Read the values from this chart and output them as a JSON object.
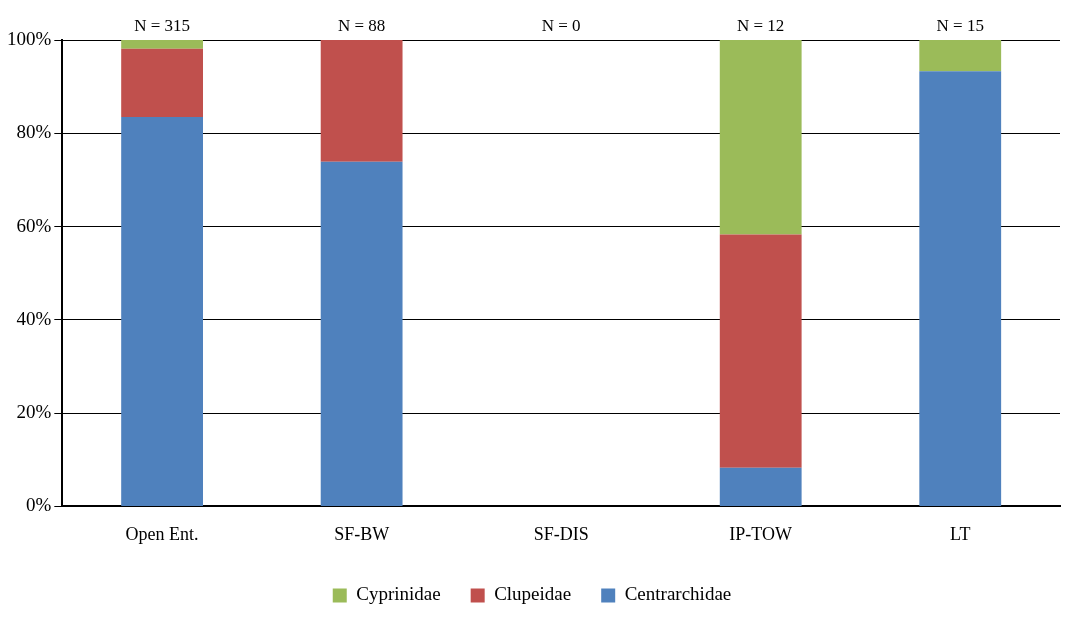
{
  "chart_data": {
    "type": "bar",
    "stacked": true,
    "categories": [
      "Open Ent.",
      "SF-BW",
      "SF-DIS",
      "IP-TOW",
      "LT"
    ],
    "series": [
      {
        "name": "Centrarchidae",
        "color": "#4f81bd",
        "values": [
          83.5,
          73.9,
          0,
          8.3,
          93.3
        ]
      },
      {
        "name": "Clupeidae",
        "color": "#c0504d",
        "values": [
          14.6,
          26.1,
          0,
          50,
          0
        ]
      },
      {
        "name": "Cyprinidae",
        "color": "#9bbb59",
        "values": [
          1.9,
          0,
          0,
          41.7,
          6.7
        ]
      }
    ],
    "ylim": [
      0,
      100
    ],
    "yticks": [
      {
        "value": 0,
        "label": "0%"
      },
      {
        "value": 20,
        "label": "20%"
      },
      {
        "value": 40,
        "label": "40%"
      },
      {
        "value": 60,
        "label": "60%"
      },
      {
        "value": 80,
        "label": "80%"
      },
      {
        "value": 100,
        "label": "100%"
      }
    ],
    "grid": "y",
    "legend": "bottom",
    "annotations": [
      "N = 315",
      "N = 88",
      "N = 0",
      "N = 12",
      "N = 15"
    ]
  }
}
